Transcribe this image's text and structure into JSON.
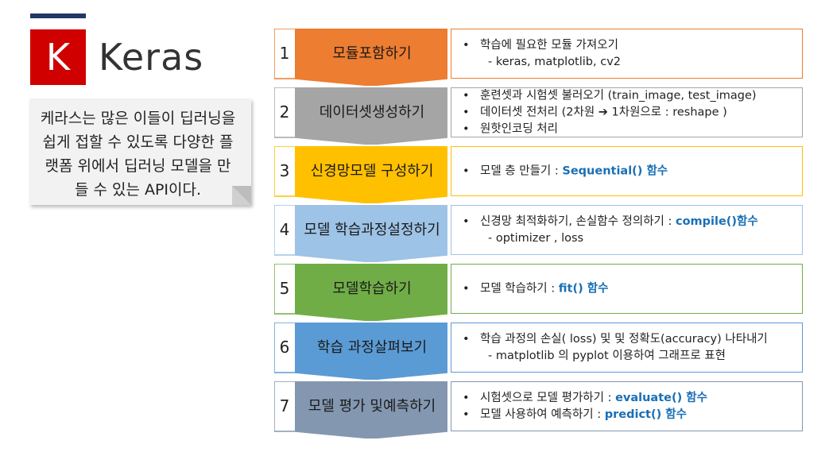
{
  "logo": {
    "letter": "K",
    "word": "Keras"
  },
  "note": "케라스는 많은 이들이 딥러닝을 쉽게 접할 수 있도록 다양한 플랫폼 위에서 딥러닝 모델을 만들 수 있는 API이다.",
  "steps": [
    {
      "num": "1",
      "title_l1": "모듈",
      "title_l2": "포함하기",
      "color": "#ed7d31",
      "lines": [
        {
          "bullet": true,
          "text": "학습에 필요한 모듈 가져오기",
          "hl": ""
        },
        {
          "bullet": false,
          "text": "- keras, matplotlib, cv2",
          "hl": ""
        }
      ]
    },
    {
      "num": "2",
      "title_l1": "데이터셋",
      "title_l2": "생성하기",
      "color": "#a5a5a5",
      "lines": [
        {
          "bullet": true,
          "text": "훈련셋과 시험셋 불러오기 (train_image, test_image)",
          "hl": ""
        },
        {
          "bullet": true,
          "text": "데이터셋 전처리 (2차원 ➔ 1차원으로 : reshape )",
          "hl": ""
        },
        {
          "bullet": true,
          "text": "원핫인코딩 처리",
          "hl": ""
        }
      ]
    },
    {
      "num": "3",
      "title_l1": "신경망",
      "title_l2": "모델 구성하기",
      "color": "#ffc000",
      "lines": [
        {
          "bullet": true,
          "text": "모델 층 만들기 : ",
          "hl": "Sequential() 함수"
        }
      ]
    },
    {
      "num": "4",
      "title_l1": "모델 학습과정",
      "title_l2": "설정하기",
      "color": "#9dc3e6",
      "lines": [
        {
          "bullet": true,
          "text": "신경망 최적화하기, 손실함수 정의하기 : ",
          "hl": "compile()함수"
        },
        {
          "bullet": false,
          "text": "- optimizer , loss",
          "hl": ""
        }
      ]
    },
    {
      "num": "5",
      "title_l1": "모델",
      "title_l2": "학습하기",
      "color": "#70ad47",
      "lines": [
        {
          "bullet": true,
          "text": "모델 학습하기 : ",
          "hl": "fit() 함수"
        }
      ]
    },
    {
      "num": "6",
      "title_l1": "학습 과정",
      "title_l2": "살펴보기",
      "color": "#5b9bd5",
      "lines": [
        {
          "bullet": true,
          "text": "학습 과정의 손실( loss) 및 및 정확도(accuracy) 나타내기",
          "hl": ""
        },
        {
          "bullet": false,
          "text": "- matplotlib 의 pyplot 이용하여 그래프로 표현",
          "hl": ""
        }
      ]
    },
    {
      "num": "7",
      "title_l1": "모델 평가 및",
      "title_l2": "예측하기",
      "color": "#8497b0",
      "lines": [
        {
          "bullet": true,
          "text": "시험셋으로 모델 평가하기 : ",
          "hl": "evaluate() 함수"
        },
        {
          "bullet": true,
          "text": "모델 사용하여 예측하기 : ",
          "hl": "predict() 함수"
        }
      ]
    }
  ]
}
